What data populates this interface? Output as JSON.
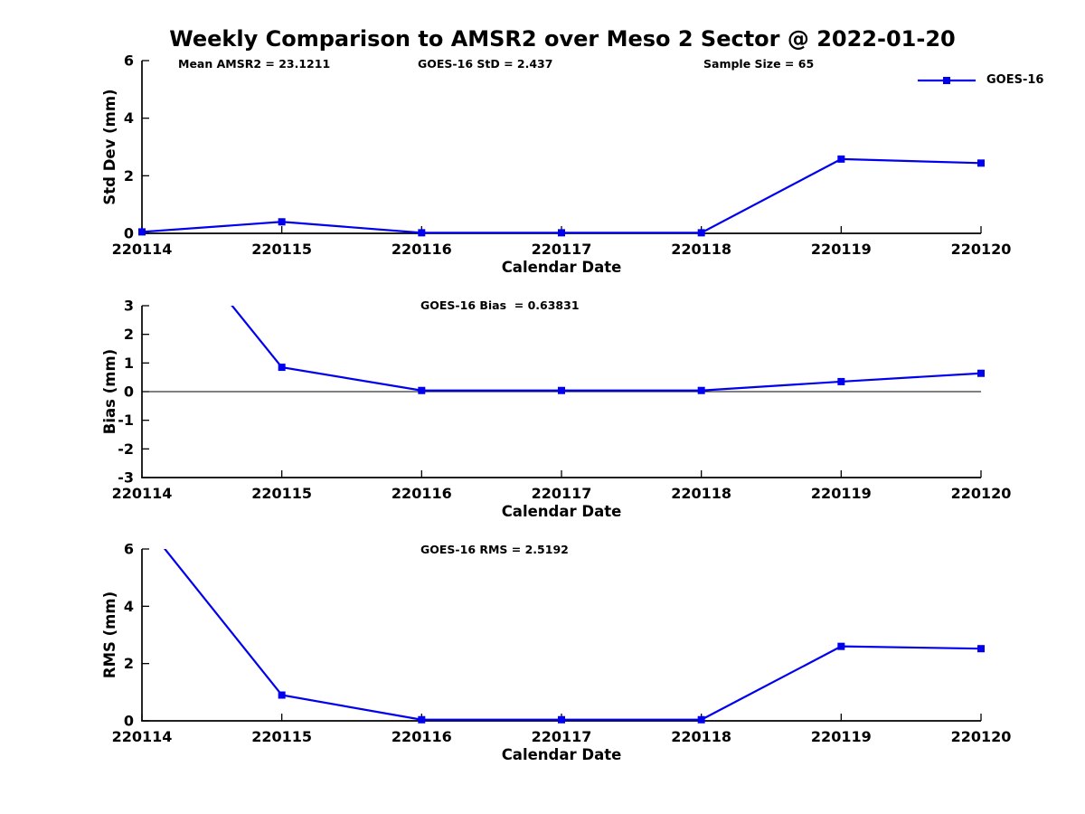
{
  "title": "Weekly Comparison to AMSR2 over Meso 2 Sector @ 2022-01-20",
  "colors": {
    "line": "#0000EE",
    "axis": "#000000",
    "text": "#000000"
  },
  "legend": {
    "label": "GOES-16",
    "position": "top-right"
  },
  "annotations": {
    "mean": "Mean AMSR2 = 23.1211",
    "std": "GOES-16 StD = 2.437",
    "sample": "Sample Size = 65",
    "bias": "GOES-16 Bias  = 0.63831",
    "rms": "GOES-16 RMS = 2.5192"
  },
  "chart_data": [
    {
      "type": "line",
      "categories": [
        "220114",
        "220115",
        "220116",
        "220117",
        "220118",
        "220119",
        "220120"
      ],
      "series": [
        {
          "name": "GOES-16",
          "values": [
            0.05,
            0.4,
            0.02,
            0.02,
            0.02,
            2.58,
            2.44
          ]
        }
      ],
      "title": "",
      "xlabel": "Calendar Date",
      "ylabel": "Std Dev (mm)",
      "ylim": [
        0,
        6
      ],
      "yticks": [
        0,
        2,
        4,
        6
      ],
      "zero_line": false,
      "grid": false,
      "marker": "square"
    },
    {
      "type": "line",
      "categories": [
        "220114",
        "220115",
        "220116",
        "220117",
        "220118",
        "220119",
        "220120"
      ],
      "series": [
        {
          "name": "GOES-16",
          "values": [
            6.9,
            0.85,
            0.04,
            0.04,
            0.04,
            0.35,
            0.64
          ]
        }
      ],
      "title": "",
      "xlabel": "Calendar Date",
      "ylabel": "Bias (mm)",
      "ylim": [
        -3,
        3
      ],
      "yticks": [
        -3,
        -2,
        -1,
        0,
        1,
        2,
        3
      ],
      "zero_line": true,
      "grid": false,
      "marker": "square"
    },
    {
      "type": "line",
      "categories": [
        "220114",
        "220115",
        "220116",
        "220117",
        "220118",
        "220119",
        "220120"
      ],
      "series": [
        {
          "name": "GOES-16",
          "values": [
            7.0,
            0.9,
            0.04,
            0.04,
            0.04,
            2.6,
            2.52
          ]
        }
      ],
      "title": "",
      "xlabel": "Calendar Date",
      "ylabel": "RMS (mm)",
      "ylim": [
        0,
        6
      ],
      "yticks": [
        0,
        2,
        4,
        6
      ],
      "zero_line": false,
      "grid": false,
      "marker": "square"
    }
  ]
}
